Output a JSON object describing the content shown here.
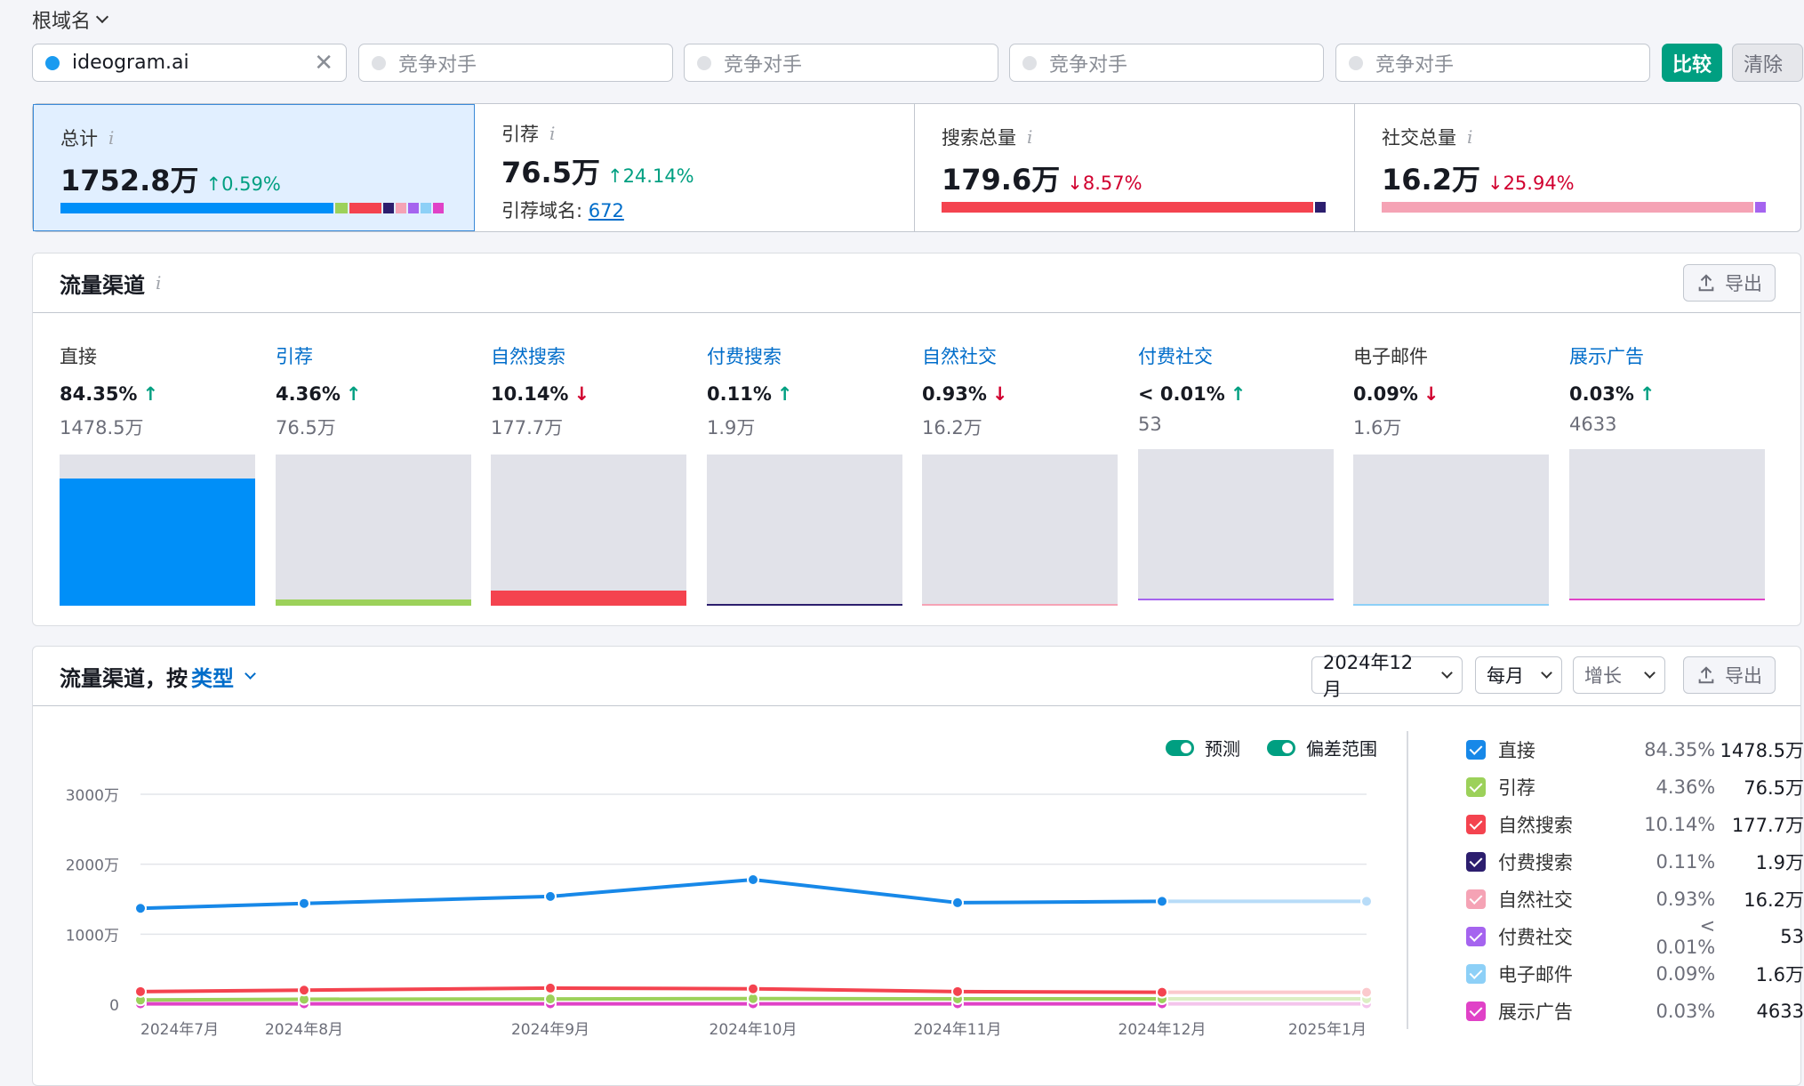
{
  "topbar": {
    "root_label": "根域名",
    "domain": "ideogram.ai",
    "competitor_placeholder": "竞争对手",
    "compare_label": "比较",
    "clear_label": "清除"
  },
  "summary": {
    "total": {
      "title": "总计",
      "value": "1752.8万",
      "change": "↑0.59%"
    },
    "referral": {
      "title": "引荐",
      "value": "76.5万",
      "change": "↑24.14%",
      "domains_label": "引荐域名:",
      "domains_value": "672"
    },
    "search": {
      "title": "搜索总量",
      "value": "179.6万",
      "change": "↓8.57%"
    },
    "social": {
      "title": "社交总量",
      "value": "16.2万",
      "change": "↓25.94%"
    }
  },
  "channels_panel": {
    "title": "流量渠道",
    "export_label": "导出",
    "channels": [
      {
        "name": "直接",
        "pct": "84.35%",
        "dir": "↑",
        "abs": "1478.5万",
        "share": 0.8435,
        "color": "#008ff8",
        "link": false
      },
      {
        "name": "引荐",
        "pct": "4.36%",
        "dir": "↑",
        "abs": "76.5万",
        "share": 0.0436,
        "color": "#9cd15a",
        "link": true
      },
      {
        "name": "自然搜索",
        "pct": "10.14%",
        "dir": "↓",
        "abs": "177.7万",
        "share": 0.1014,
        "color": "#f4434f",
        "link": true
      },
      {
        "name": "付费搜索",
        "pct": "0.11%",
        "dir": "↑",
        "abs": "1.9万",
        "share": 0.0011,
        "color": "#2c1e6e",
        "link": true
      },
      {
        "name": "自然社交",
        "pct": "0.93%",
        "dir": "↓",
        "abs": "16.2万",
        "share": 0.0093,
        "color": "#f5a3b5",
        "link": true
      },
      {
        "name": "付费社交",
        "pct": "< 0.01%",
        "dir": "↑",
        "abs": "53",
        "share": 0.0001,
        "color": "#a564ef",
        "link": true
      },
      {
        "name": "电子邮件",
        "pct": "0.09%",
        "dir": "↓",
        "abs": "1.6万",
        "share": 0.0009,
        "color": "#8dd0f7",
        "link": false
      },
      {
        "name": "展示广告",
        "pct": "0.03%",
        "dir": "↑",
        "abs": "4633",
        "share": 0.0003,
        "color": "#e042c7",
        "link": true
      }
    ]
  },
  "chart_panel": {
    "title_prefix": "流量渠道，按",
    "title_link": "类型",
    "date_select": "2024年12月",
    "period_select": "每月",
    "metric_select": "增长",
    "export_label": "导出",
    "toggle_forecast": "预测",
    "toggle_range": "偏差范围",
    "legend": [
      {
        "name": "直接",
        "pct": "84.35%",
        "abs": "1478.5万",
        "color": "#1788e8"
      },
      {
        "name": "引荐",
        "pct": "4.36%",
        "abs": "76.5万",
        "color": "#9cd15a"
      },
      {
        "name": "自然搜索",
        "pct": "10.14%",
        "abs": "177.7万",
        "color": "#f4434f"
      },
      {
        "name": "付费搜索",
        "pct": "0.11%",
        "abs": "1.9万",
        "color": "#2c1e6e"
      },
      {
        "name": "自然社交",
        "pct": "0.93%",
        "abs": "16.2万",
        "color": "#f5a3b5"
      },
      {
        "name": "付费社交",
        "pct": "< 0.01%",
        "abs": "53",
        "color": "#a564ef"
      },
      {
        "name": "电子邮件",
        "pct": "0.09%",
        "abs": "1.6万",
        "color": "#8dd0f7"
      },
      {
        "name": "展示广告",
        "pct": "0.03%",
        "abs": "4633",
        "color": "#e042c7"
      }
    ]
  },
  "chart_data": {
    "type": "line",
    "x": [
      "2024年7月",
      "2024年8月",
      "2024年9月",
      "2024年10月",
      "2024年11月",
      "2024年12月",
      "2025年1月"
    ],
    "y_ticks": [
      "0",
      "1000万",
      "2000万",
      "3000万"
    ],
    "ylim": [
      0,
      3000
    ],
    "y_unit": "万",
    "forecast_from_index": 5,
    "series": [
      {
        "name": "直接",
        "color": "#1788e8",
        "forecast_color": "#b8dcf8",
        "values": [
          1370,
          1440,
          1540,
          1780,
          1450,
          1470,
          1470
        ]
      },
      {
        "name": "自然搜索",
        "color": "#f4434f",
        "forecast_color": "#fbc9cd",
        "values": [
          180,
          200,
          230,
          220,
          180,
          170,
          170
        ]
      },
      {
        "name": "引荐",
        "color": "#9cd15a",
        "forecast_color": "#dcefc4",
        "values": [
          60,
          70,
          75,
          80,
          76,
          76,
          76
        ]
      },
      {
        "name": "展示广告",
        "color": "#e042c7",
        "forecast_color": "#f4c4ec",
        "values": [
          5,
          5,
          5,
          5,
          5,
          5,
          5
        ]
      }
    ],
    "grid": true
  }
}
